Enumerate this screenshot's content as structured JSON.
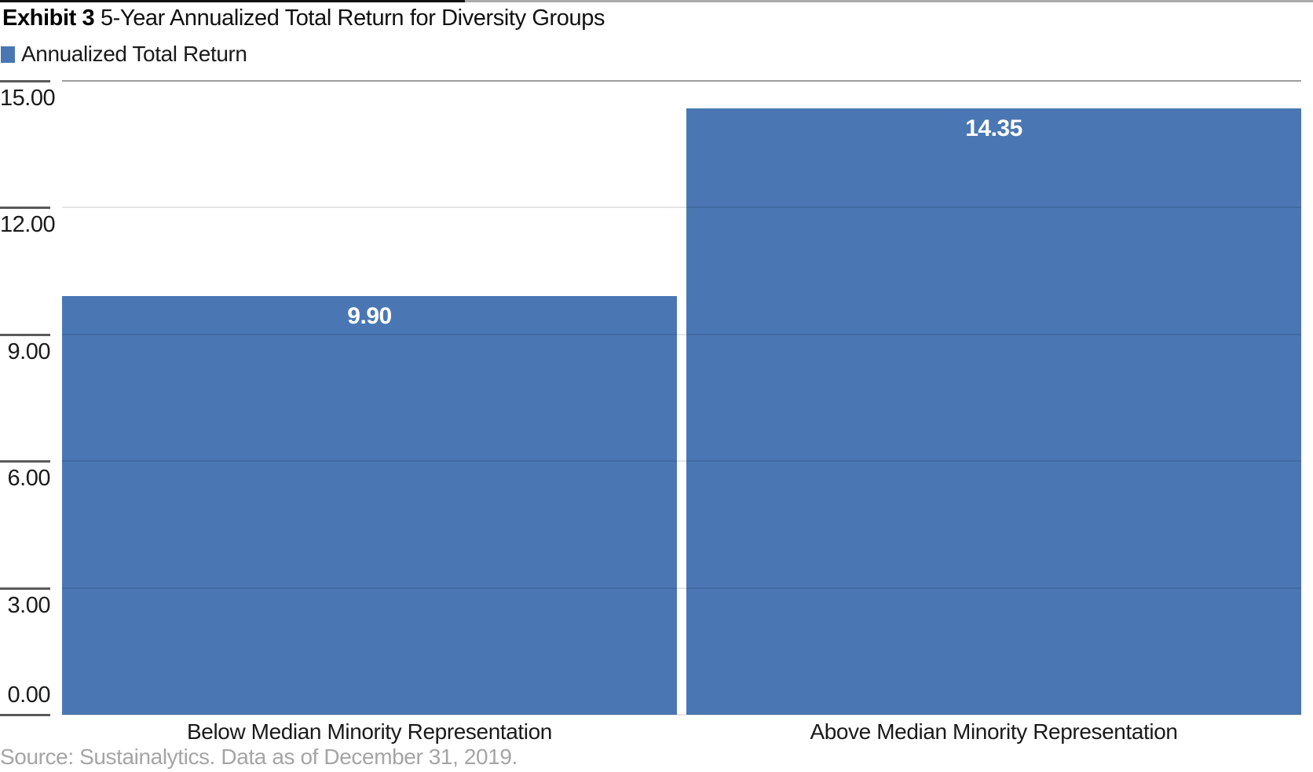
{
  "header": {
    "exhibit_label": "Exhibit 3",
    "title": "5-Year Annualized Total Return for Diversity Groups"
  },
  "legend": {
    "label": "Annualized Total Return",
    "swatch_icon": "legend-square-icon"
  },
  "source_note": "Source: Sustainalytics. Data as of December 31, 2019.",
  "colors": {
    "bar": "#4a77b4",
    "value_label": "#ffffff",
    "gridline_on_white": "#e5e5e5",
    "plot_top_border": "#9e9e9e",
    "axis_tick": "#5a5a5a",
    "top_rule_gray": "#ababab",
    "top_rule_black": "#111111",
    "source_text": "#a5a5a5",
    "text": "#1a1a1a"
  },
  "chart_data": {
    "type": "bar",
    "title": "Exhibit 3 5-Year Annualized Total Return for Diversity Groups",
    "categories": [
      "Below Median Minority Representation",
      "Above Median Minority Representation"
    ],
    "series": [
      {
        "name": "Annualized Total Return",
        "values": [
          9.9,
          14.35
        ]
      }
    ],
    "value_labels": [
      "9.90",
      "14.35"
    ],
    "xlabel": "",
    "ylabel": "",
    "ylim": [
      0,
      15
    ],
    "yticks": [
      15.0,
      12.0,
      9.0,
      6.0,
      3.0,
      0.0
    ],
    "ytick_labels": [
      "15.00",
      "12.00",
      "9.00",
      "6.00",
      "3.00",
      "0.00"
    ],
    "grid": true,
    "legend_position": "top-left",
    "bar_color": "#4a77b4"
  }
}
